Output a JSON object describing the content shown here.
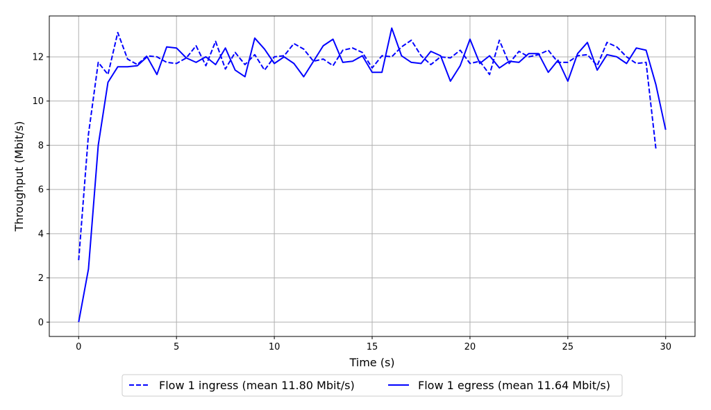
{
  "chart_data": {
    "type": "line",
    "xlabel": "Time (s)",
    "ylabel": "Throughput (Mbit/s)",
    "xlim": [
      -1.5,
      31.5
    ],
    "ylim": [
      -0.65,
      13.85
    ],
    "xticks": [
      0,
      5,
      10,
      15,
      20,
      25,
      30
    ],
    "yticks": [
      0,
      2,
      4,
      6,
      8,
      10,
      12
    ],
    "grid": true,
    "legend_position": "bottom-center (below plot)",
    "series": [
      {
        "name": "Flow 1 ingress (mean 11.80 Mbit/s)",
        "color": "#0000ff",
        "style": "dashed",
        "x": [
          0,
          0.5,
          1,
          1.5,
          2,
          2.5,
          3,
          3.5,
          4,
          4.5,
          5,
          5.5,
          6,
          6.5,
          7,
          7.5,
          8,
          8.5,
          9,
          9.5,
          10,
          10.5,
          11,
          11.5,
          12,
          12.5,
          13,
          13.5,
          14,
          14.5,
          15,
          15.5,
          16,
          16.5,
          17,
          17.5,
          18,
          18.5,
          19,
          19.5,
          20,
          20.5,
          21,
          21.5,
          22,
          22.5,
          23,
          23.5,
          24,
          24.5,
          25,
          25.5,
          26,
          26.5,
          27,
          27.5,
          28,
          28.5,
          29,
          29.5
        ],
        "y": [
          2.8,
          8.5,
          11.75,
          11.2,
          13.1,
          11.9,
          11.65,
          12.05,
          12.0,
          11.75,
          11.7,
          11.95,
          12.5,
          11.6,
          12.7,
          11.45,
          12.2,
          11.65,
          12.1,
          11.4,
          12.0,
          12.05,
          12.6,
          12.35,
          11.8,
          11.9,
          11.6,
          12.3,
          12.4,
          12.2,
          11.5,
          12.05,
          12.0,
          12.45,
          12.75,
          12.05,
          11.65,
          12.0,
          11.95,
          12.3,
          11.7,
          11.8,
          11.2,
          12.75,
          11.7,
          12.25,
          12.0,
          12.1,
          12.3,
          11.75,
          11.75,
          12.05,
          12.1,
          11.6,
          12.65,
          12.45,
          12.0,
          11.7,
          11.75,
          7.85
        ]
      },
      {
        "name": "Flow 1 egress (mean 11.64 Mbit/s)",
        "color": "#0000ff",
        "style": "solid",
        "x": [
          0,
          0.5,
          1,
          1.5,
          2,
          2.5,
          3,
          3.5,
          4,
          4.5,
          5,
          5.5,
          6,
          6.5,
          7,
          7.5,
          8,
          8.5,
          9,
          9.5,
          10,
          10.5,
          11,
          11.5,
          12,
          12.5,
          13,
          13.5,
          14,
          14.5,
          15,
          15.5,
          16,
          16.5,
          17,
          17.5,
          18,
          18.5,
          19,
          19.5,
          20,
          20.5,
          21,
          21.5,
          22,
          22.5,
          23,
          23.5,
          24,
          24.5,
          25,
          25.5,
          26,
          26.5,
          27,
          27.5,
          28,
          28.5,
          29,
          29.5,
          30
        ],
        "y": [
          0.0,
          2.4,
          8.0,
          10.85,
          11.55,
          11.55,
          11.6,
          12.0,
          11.2,
          12.45,
          12.4,
          11.95,
          11.75,
          12.0,
          11.65,
          12.4,
          11.4,
          11.1,
          12.85,
          12.35,
          11.7,
          12.0,
          11.7,
          11.1,
          11.8,
          12.5,
          12.8,
          11.75,
          11.8,
          12.05,
          11.3,
          11.3,
          13.3,
          12.05,
          11.75,
          11.7,
          12.25,
          12.05,
          10.9,
          11.6,
          12.8,
          11.7,
          12.05,
          11.5,
          11.8,
          11.75,
          12.15,
          12.15,
          11.3,
          11.85,
          10.9,
          12.15,
          12.65,
          11.4,
          12.1,
          12.0,
          11.7,
          12.4,
          12.3,
          10.75,
          8.7
        ]
      }
    ]
  }
}
